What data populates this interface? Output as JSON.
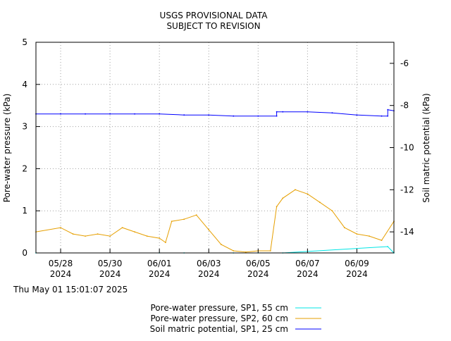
{
  "chart_data": {
    "type": "line",
    "title_lines": [
      "USGS PROVISIONAL DATA",
      "SUBJECT TO REVISION"
    ],
    "ylabel_left": "Pore-water pressure (kPa)",
    "ylabel_right": "Soil matric potential (kPa)",
    "ylim_left": [
      0,
      5
    ],
    "ylim_right": [
      -15,
      -5
    ],
    "yticks_left": [
      0,
      1,
      2,
      3,
      4,
      5
    ],
    "yticks_right": [
      -14,
      -12,
      -10,
      -8,
      -6
    ],
    "xlim": [
      "2024-05-27",
      "2024-06-10 12:00"
    ],
    "xticks": [
      {
        "date": "2024-05-28",
        "line1": "05/28",
        "line2": "2024"
      },
      {
        "date": "2024-05-30",
        "line1": "05/30",
        "line2": "2024"
      },
      {
        "date": "2024-06-01",
        "line1": "06/01",
        "line2": "2024"
      },
      {
        "date": "2024-06-03",
        "line1": "06/03",
        "line2": "2024"
      },
      {
        "date": "2024-06-05",
        "line1": "06/05",
        "line2": "2024"
      },
      {
        "date": "2024-06-07",
        "line1": "06/07",
        "line2": "2024"
      },
      {
        "date": "2024-06-09",
        "line1": "06/09",
        "line2": "2024"
      }
    ],
    "grid": true,
    "legend_position": "bottom",
    "timestamp": "Thu May 01 15:01:07 2025",
    "series": [
      {
        "name": "Pore-water pressure, SP1, 55 cm",
        "axis": "left",
        "color": "#00e5e5",
        "x": [
          "2024-05-27",
          "2024-06-01",
          "2024-06-02",
          "2024-06-04",
          "2024-06-05",
          "2024-06-06",
          "2024-06-10 06:00",
          "2024-06-10 12:00"
        ],
        "y": [
          0,
          0,
          0,
          0,
          0,
          0,
          0.15,
          0
        ]
      },
      {
        "name": "Pore-water pressure, SP2, 60 cm",
        "axis": "left",
        "color": "#e69f00",
        "x": [
          "2024-05-27",
          "2024-05-28",
          "2024-05-28 12:00",
          "2024-05-29",
          "2024-05-29 12:00",
          "2024-05-30",
          "2024-05-30 12:00",
          "2024-05-31",
          "2024-05-31 12:00",
          "2024-06-01",
          "2024-06-01 06:00",
          "2024-06-01 12:00",
          "2024-06-02",
          "2024-06-02 12:00",
          "2024-06-03",
          "2024-06-03 12:00",
          "2024-06-04",
          "2024-06-04 12:00",
          "2024-06-05",
          "2024-06-05 12:00",
          "2024-06-05 18:00",
          "2024-06-06",
          "2024-06-06 12:00",
          "2024-06-07",
          "2024-06-07 12:00",
          "2024-06-08",
          "2024-06-08 12:00",
          "2024-06-09",
          "2024-06-09 12:00",
          "2024-06-10",
          "2024-06-10 12:00"
        ],
        "y": [
          0.5,
          0.6,
          0.45,
          0.4,
          0.45,
          0.4,
          0.6,
          0.5,
          0.4,
          0.35,
          0.25,
          0.75,
          0.8,
          0.9,
          0.55,
          0.2,
          0.05,
          0.02,
          0.05,
          0.05,
          1.1,
          1.3,
          1.5,
          1.4,
          1.2,
          1.0,
          0.6,
          0.45,
          0.4,
          0.3,
          0.75
        ]
      },
      {
        "name": "Soil matric potential, SP1, 25 cm",
        "axis": "right",
        "color": "#0000ff",
        "x": [
          "2024-05-27",
          "2024-05-28",
          "2024-05-29",
          "2024-05-30",
          "2024-05-31",
          "2024-06-01",
          "2024-06-02",
          "2024-06-03",
          "2024-06-04",
          "2024-06-05",
          "2024-06-05 18:00",
          "2024-06-05 18:01",
          "2024-06-06",
          "2024-06-07",
          "2024-06-08",
          "2024-06-09",
          "2024-06-10",
          "2024-06-10 06:00",
          "2024-06-10 06:01",
          "2024-06-10 12:00"
        ],
        "y": [
          -8.4,
          -8.4,
          -8.4,
          -8.4,
          -8.4,
          -8.4,
          -8.45,
          -8.45,
          -8.5,
          -8.5,
          -8.5,
          -8.3,
          -8.3,
          -8.3,
          -8.35,
          -8.45,
          -8.5,
          -8.5,
          -8.2,
          -8.25
        ]
      }
    ]
  }
}
